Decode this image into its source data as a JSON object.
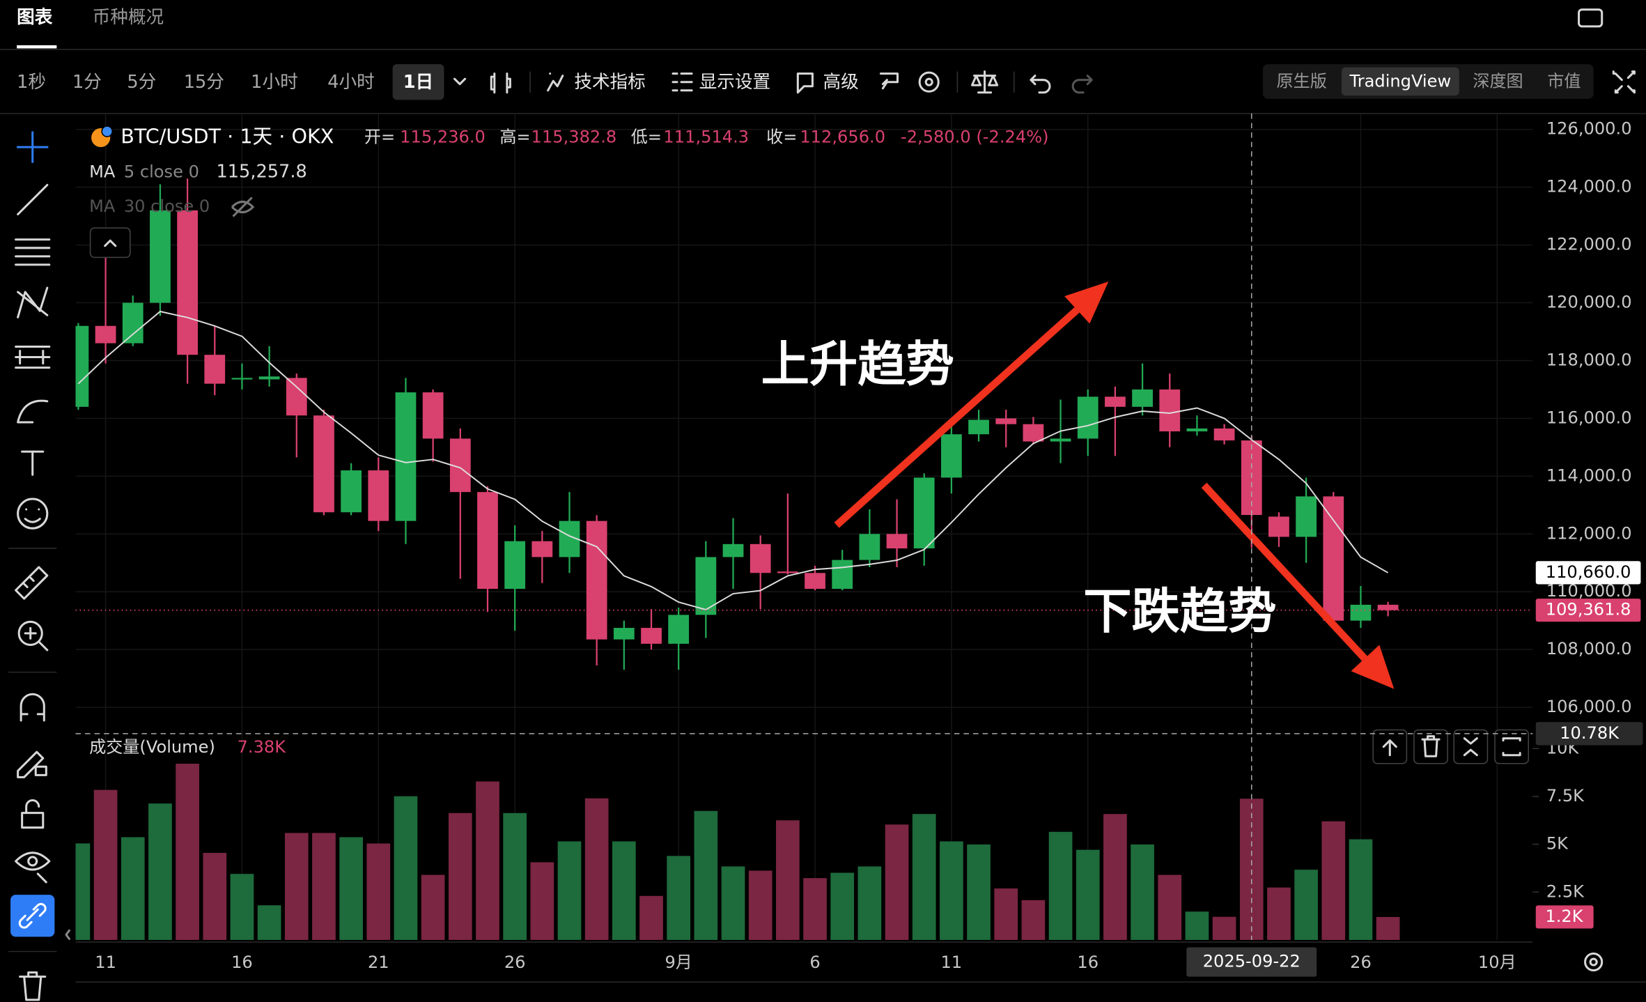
{
  "tabs": {
    "items": [
      "图表",
      "币种概况"
    ]
  },
  "toolbar": {
    "intervals": [
      "1秒",
      "1分",
      "5分",
      "15分",
      "1小时",
      "4小时",
      "1日"
    ],
    "tools": [
      "技术指标",
      "显示设置",
      "高级"
    ],
    "views": [
      "原生版",
      "TradingView",
      "深度图",
      "市值"
    ]
  },
  "chart_data": {
    "type": "candlestick",
    "title": "BTC/USDT · 1天 · OKX",
    "readout": [
      {
        "label": "开=",
        "value": "115,236.0"
      },
      {
        "label": "高=",
        "value": "115,382.8"
      },
      {
        "label": "低=",
        "value": "111,514.3"
      },
      {
        "label": "收=",
        "value": "112,656.0"
      }
    ],
    "change": "-2,580.0 (-2.24%)",
    "up_color": "#22ab55",
    "down_color": "#d9416f",
    "open": [
      116400,
      119200,
      118600,
      120000,
      123200,
      118200,
      117350,
      117350,
      117400,
      116100,
      112750,
      114200,
      112450,
      116900,
      115300,
      113450,
      110100,
      111750,
      111200,
      112450,
      108350,
      108750,
      108200,
      109200,
      111200,
      111650,
      110700,
      110650,
      110100,
      111100,
      112000,
      111500,
      113950,
      115450,
      116000,
      115800,
      115200,
      115300,
      116750,
      116400,
      117000,
      115550,
      115650,
      115236,
      112600,
      111900,
      113300,
      109000,
      109550
    ],
    "high": [
      119300,
      121750,
      120250,
      124100,
      124300,
      119200,
      117900,
      118500,
      117550,
      116300,
      114450,
      114650,
      117400,
      117000,
      115650,
      113650,
      112300,
      112100,
      113450,
      112650,
      109000,
      109400,
      109450,
      111750,
      112550,
      111950,
      113400,
      110900,
      111450,
      112850,
      113200,
      114100,
      115750,
      116300,
      116300,
      116050,
      116650,
      117000,
      117100,
      117900,
      117550,
      116100,
      115800,
      115382.8,
      112750,
      113950,
      113450,
      110200,
      109650
    ],
    "low": [
      116300,
      117900,
      118500,
      119550,
      117200,
      116800,
      117000,
      117100,
      114650,
      112650,
      112650,
      112100,
      111650,
      114500,
      110450,
      109300,
      108650,
      110300,
      110650,
      107450,
      107300,
      108000,
      107300,
      108400,
      110100,
      109400,
      110600,
      110050,
      110050,
      110850,
      110850,
      110900,
      113400,
      115200,
      115000,
      115100,
      114450,
      114700,
      114700,
      116100,
      115000,
      115400,
      115100,
      111514.3,
      111550,
      111000,
      108850,
      108750,
      109150
    ],
    "close": [
      119200,
      118600,
      120000,
      123200,
      118200,
      117200,
      117400,
      117450,
      116100,
      112750,
      114200,
      112450,
      116900,
      115300,
      113450,
      110100,
      111750,
      111200,
      112450,
      108350,
      108750,
      108200,
      109200,
      111200,
      111650,
      110650,
      110650,
      110100,
      111100,
      112000,
      111500,
      113950,
      115450,
      115950,
      115800,
      115200,
      115300,
      116750,
      116400,
      117000,
      115550,
      115650,
      115236,
      112656,
      111900,
      113300,
      109000,
      109550,
      109361.8
    ],
    "last_price": {
      "value": 109361.8,
      "label": "109,361.8"
    },
    "ylim": [
      105400,
      126550
    ],
    "yticks": [
      {
        "value": 126000,
        "label": "126,000.0"
      },
      {
        "value": 124000,
        "label": "124,000.0"
      },
      {
        "value": 122000,
        "label": "122,000.0"
      },
      {
        "value": 120000,
        "label": "120,000.0"
      },
      {
        "value": 118000,
        "label": "118,000.0"
      },
      {
        "value": 116000,
        "label": "116,000.0"
      },
      {
        "value": 114000,
        "label": "114,000.0"
      },
      {
        "value": 112000,
        "label": "112,000.0"
      },
      {
        "value": 110000,
        "label": "110,000.0"
      },
      {
        "value": 108000,
        "label": "108,000.0"
      },
      {
        "value": 106000,
        "label": "106,000.0"
      }
    ],
    "xlim": [
      -0.1,
      53.3
    ],
    "xticks": [
      {
        "value": 1,
        "label": "11"
      },
      {
        "value": 6,
        "label": "16"
      },
      {
        "value": 11,
        "label": "21"
      },
      {
        "value": 16,
        "label": "26"
      },
      {
        "value": 22,
        "label": "9月"
      },
      {
        "value": 27,
        "label": "6"
      },
      {
        "value": 32,
        "label": "11"
      },
      {
        "value": 37,
        "label": "16"
      },
      {
        "value": 47,
        "label": "26"
      },
      {
        "value": 52,
        "label": "10月"
      }
    ],
    "crosshair": {
      "x": {
        "value": 43,
        "label": "2025-09-22"
      }
    },
    "ma": [
      {
        "name": "MA",
        "params": "5 close 0",
        "readout": "115,257.8",
        "color": "#dddddd",
        "values": [
          117200,
          118100,
          118910,
          119700,
          119490,
          119200,
          118840,
          117930,
          117090,
          116220,
          115490,
          114730,
          114470,
          114580,
          114290,
          113560,
          113200,
          112440,
          111930,
          111560,
          110550,
          110180,
          109640,
          109380,
          109930,
          110040,
          110550,
          110770,
          110840,
          110950,
          111090,
          111460,
          112400,
          113380,
          114290,
          115130,
          115560,
          115750,
          116040,
          116250,
          116180,
          116360,
          116000,
          115257.8,
          114580,
          113750,
          112470,
          111200,
          110660
        ],
        "last": {
          "value": 110660,
          "label": "110,660.0"
        }
      },
      {
        "name": "MA",
        "params": "30 close 0",
        "hidden": true
      }
    ],
    "volume": {
      "name": "成交量(Volume)",
      "readout": "7.38K",
      "up_color": "#1e6b3c",
      "down_color": "#7b2642",
      "values": [
        5044,
        7840,
        5370,
        7130,
        9210,
        4550,
        3450,
        1810,
        5590,
        5590,
        5370,
        5040,
        7510,
        3400,
        6630,
        8280,
        6630,
        4060,
        5150,
        7400,
        5150,
        2300,
        4390,
        6740,
        3840,
        3620,
        6250,
        3230,
        3510,
        3840,
        6030,
        6580,
        5150,
        4990,
        2690,
        2080,
        5650,
        4710,
        6580,
        4990,
        3400,
        1480,
        1210,
        7380,
        2740,
        3670,
        6200,
        5260,
        1200
      ],
      "ylim": [
        0,
        10700
      ],
      "yticks": [
        {
          "value": 10000,
          "label": "10K"
        },
        {
          "value": 7500,
          "label": "7.5K"
        },
        {
          "value": 5000,
          "label": "5K"
        },
        {
          "value": 2500,
          "label": "2.5K"
        }
      ],
      "last": {
        "value": 1200,
        "label": "1.2K"
      },
      "crosshair": {
        "value": 10780,
        "label": "10.78K"
      }
    },
    "annotations": [
      {
        "text": "上升趋势"
      },
      {
        "text": "下跌趋势"
      }
    ]
  }
}
